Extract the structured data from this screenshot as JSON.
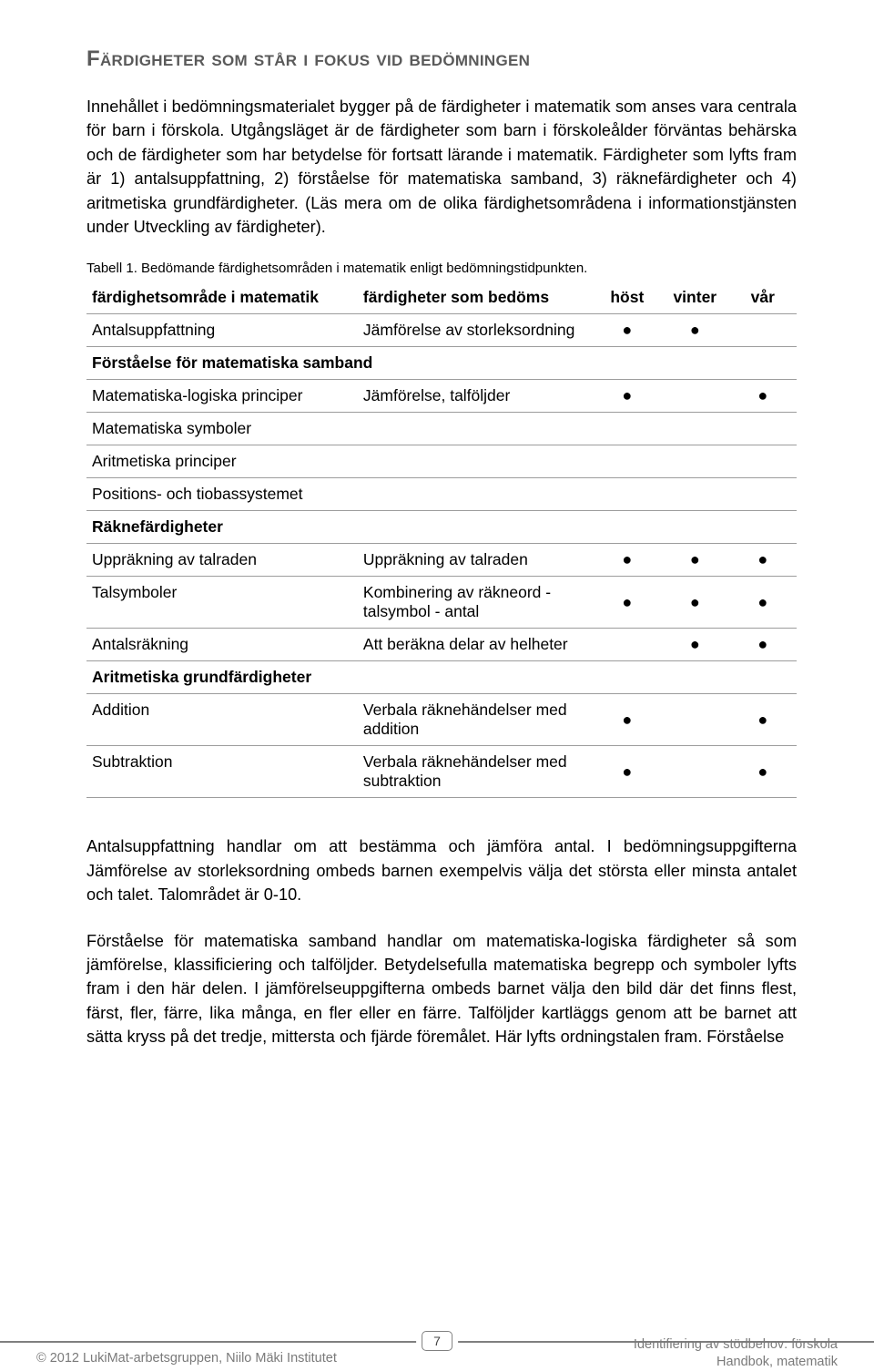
{
  "heading": "Färdigheter som står i fokus vid bedömningen",
  "intro": "Innehållet i bedömningsmaterialet bygger på de färdigheter i matematik som anses vara centrala för barn i förskola. Utgångsläget är de färdigheter som barn i förskoleålder förväntas behärska och de färdigheter som har betydelse för fortsatt lärande i matematik. Färdigheter som lyfts fram är 1) antalsuppfattning, 2) förståelse för matematiska samband, 3) räknefärdigheter och 4) aritmetiska grundfärdigheter. (Läs mera om de olika färdighetsområdena i informationstjänsten under Utveckling av färdigheter).",
  "table_caption": "Tabell 1. Bedömande färdighetsområden i matematik enligt bedömningstidpunkten.",
  "table": {
    "columns": [
      "färdighetsområde i matematik",
      "färdigheter som bedöms",
      "höst",
      "vinter",
      "vår"
    ],
    "rows": [
      {
        "type": "data",
        "c0": "Antalsuppfattning",
        "c1": "Jämförelse av storleksordning",
        "host": true,
        "vinter": true,
        "var": false
      },
      {
        "type": "section",
        "label": "Förståelse för matematiska samband"
      },
      {
        "type": "data",
        "c0": "Matematiska-logiska principer",
        "c1": "Jämförelse, talföljder",
        "host": true,
        "vinter": false,
        "var": true
      },
      {
        "type": "data",
        "c0": "Matematiska symboler",
        "c1": "",
        "host": false,
        "vinter": false,
        "var": false
      },
      {
        "type": "data",
        "c0": "Aritmetiska principer",
        "c1": "",
        "host": false,
        "vinter": false,
        "var": false
      },
      {
        "type": "data",
        "c0": "Positions- och tiobassystemet",
        "c1": "",
        "host": false,
        "vinter": false,
        "var": false
      },
      {
        "type": "section",
        "label": "Räknefärdigheter"
      },
      {
        "type": "data",
        "c0": "Uppräkning av talraden",
        "c1": "Uppräkning av talraden",
        "host": true,
        "vinter": true,
        "var": true
      },
      {
        "type": "data",
        "c0": "Talsymboler",
        "c1": "Kombinering av räkneord - talsymbol - antal",
        "host": true,
        "vinter": true,
        "var": true
      },
      {
        "type": "data",
        "c0": "Antalsräkning",
        "c1": "Att beräkna delar av helheter",
        "host": false,
        "vinter": true,
        "var": true
      },
      {
        "type": "section",
        "label": "Aritmetiska grundfärdigheter"
      },
      {
        "type": "data",
        "c0": "Addition",
        "c1": "Verbala räknehändelser med addition",
        "host": true,
        "vinter": false,
        "var": true
      },
      {
        "type": "data",
        "c0": "Subtraktion",
        "c1": "Verbala räknehändelser med subtraktion",
        "host": true,
        "vinter": false,
        "var": true
      }
    ]
  },
  "p2": "Antalsuppfattning handlar om att bestämma och jämföra antal. I bedömningsuppgifterna Jämförelse av storleksordning ombeds barnen exempelvis välja det största eller minsta antalet och talet. Talområdet är 0-10.",
  "p3": "Förståelse för matematiska samband handlar om matematiska-logiska färdigheter så som jämförelse, klassificiering och talföljder. Betydelsefulla matematiska begrepp och symboler lyfts fram i den här delen. I jämförelseuppgifterna ombeds barnet välja den bild där det finns flest, färst, fler, färre, lika många, en fler eller en färre. Talföljder kartläggs genom att be barnet att sätta kryss på det tredje, mittersta och fjärde föremålet. Här lyfts ordningstalen fram. Förståelse",
  "footer": {
    "page_number": "7",
    "left": "© 2012 LukiMat-arbetsgruppen, Niilo Mäki Institutet",
    "right_line1": "Identifiering av stödbehov: förskola",
    "right_line2": "Handbok, matematik"
  },
  "style": {
    "dot_glyph": "●",
    "heading_color": "#5a5a5a",
    "border_color": "#9c9c9c",
    "footer_color": "#7a7a7a"
  }
}
